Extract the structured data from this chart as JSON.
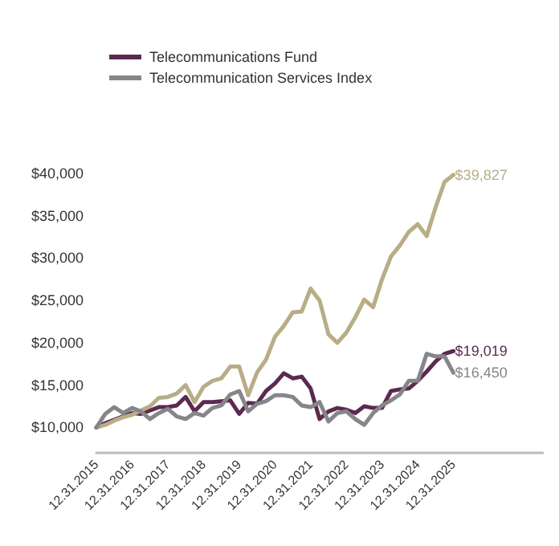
{
  "chart_data": {
    "type": "line",
    "categories": [
      "12.31.2015",
      null,
      null,
      null,
      "12.31.2016",
      null,
      null,
      null,
      "12.31.2017",
      null,
      null,
      null,
      "12.31.2018",
      null,
      null,
      null,
      "12.31.2019",
      null,
      null,
      null,
      "12.31.2020",
      null,
      null,
      null,
      "12.31.2021",
      null,
      null,
      null,
      "12.31.2022",
      null,
      null,
      null,
      "12.31.2023",
      null,
      null,
      null,
      "12.31.2024",
      null,
      null,
      null,
      "12.31.2025",
      null,
      null,
      null,
      null,
      null,
      null,
      null,
      null,
      null,
      null
    ],
    "series": [
      {
        "name": "Telecommunications Fund",
        "color": "#5b2a4e",
        "values": [
          10000,
          10500,
          10900,
          11300,
          11700,
          11600,
          12000,
          12400,
          12400,
          12600,
          13600,
          11900,
          13000,
          13000,
          13100,
          13200,
          11600,
          12900,
          12800,
          14300,
          15200,
          16400,
          15800,
          16000,
          14600,
          11000,
          11900,
          12300,
          12100,
          11700,
          12500,
          12300,
          12300,
          14300,
          14500,
          14600,
          15500,
          16600,
          17800,
          18700,
          19019,
          null,
          null,
          null,
          null,
          null,
          null,
          null,
          null,
          null,
          null
        ],
        "value_labels": [
          null,
          null,
          null,
          null,
          null,
          null,
          null,
          null,
          null,
          null,
          null,
          null,
          null,
          null,
          null,
          null,
          null,
          null,
          null,
          null,
          null,
          null,
          null,
          null,
          null,
          null,
          null,
          null,
          null,
          null,
          null,
          null,
          null,
          null,
          null,
          null,
          null,
          null,
          null,
          null,
          "$19,019",
          null,
          null,
          null,
          null,
          null,
          null,
          null,
          null,
          null,
          null
        ]
      },
      {
        "color": "#b8ad86",
        "values": [
          10000,
          10300,
          10800,
          11200,
          11500,
          12000,
          12500,
          13500,
          13600,
          14000,
          15000,
          13000,
          14800,
          15500,
          15800,
          17200,
          17200,
          13800,
          16500,
          18000,
          20700,
          22000,
          23600,
          23700,
          26400,
          25000,
          21000,
          20000,
          21200,
          23000,
          25100,
          24200,
          27500,
          30200,
          31500,
          33100,
          34000,
          32600,
          36000,
          39000,
          39827,
          null,
          null,
          null,
          null,
          null,
          null,
          null,
          null,
          null,
          null
        ],
        "value_labels": [
          null,
          null,
          null,
          null,
          null,
          null,
          null,
          null,
          null,
          null,
          null,
          null,
          null,
          null,
          null,
          null,
          null,
          null,
          null,
          null,
          null,
          null,
          null,
          null,
          null,
          null,
          null,
          null,
          null,
          null,
          null,
          null,
          null,
          null,
          null,
          null,
          null,
          null,
          null,
          null,
          "$39,827",
          null,
          null,
          null,
          null,
          null,
          null,
          null,
          null,
          null,
          null
        ]
      },
      {
        "name": "Telecommunication Services Index",
        "color": "#85858a",
        "values": [
          10000,
          11600,
          12400,
          11700,
          12300,
          11900,
          11000,
          11700,
          12200,
          11300,
          11000,
          11700,
          11400,
          12300,
          12600,
          13900,
          14300,
          11900,
          12800,
          13100,
          13800,
          13800,
          13600,
          12600,
          12400,
          13000,
          10700,
          11700,
          11900,
          11000,
          10300,
          11700,
          12600,
          13200,
          13900,
          15500,
          15500,
          18700,
          18400,
          18400,
          16450,
          null,
          null,
          null,
          null,
          null,
          null,
          null,
          null,
          null,
          null
        ],
        "value_labels": [
          null,
          null,
          null,
          null,
          null,
          null,
          null,
          null,
          null,
          null,
          null,
          null,
          null,
          null,
          null,
          null,
          null,
          null,
          null,
          null,
          null,
          null,
          null,
          null,
          null,
          null,
          null,
          null,
          null,
          null,
          null,
          null,
          null,
          null,
          null,
          null,
          null,
          null,
          null,
          null,
          "$16,450",
          null,
          null,
          null,
          null,
          null,
          null,
          null,
          null,
          null,
          null
        ]
      }
    ],
    "ylim": [
      7000,
      40000
    ],
    "yticks": [
      {
        "value": 10000,
        "label": "$10,000"
      },
      {
        "value": 15000,
        "label": "$15,000"
      },
      {
        "value": 20000,
        "label": "$20,000"
      },
      {
        "value": 25000,
        "label": "$25,000"
      },
      {
        "value": 30000,
        "label": "$30,000"
      },
      {
        "value": 35000,
        "label": "$35,000"
      },
      {
        "value": 40000,
        "label": "$40,000"
      }
    ],
    "grid": false,
    "legend": "top left",
    "marker": "none",
    "line_style": "solid"
  }
}
